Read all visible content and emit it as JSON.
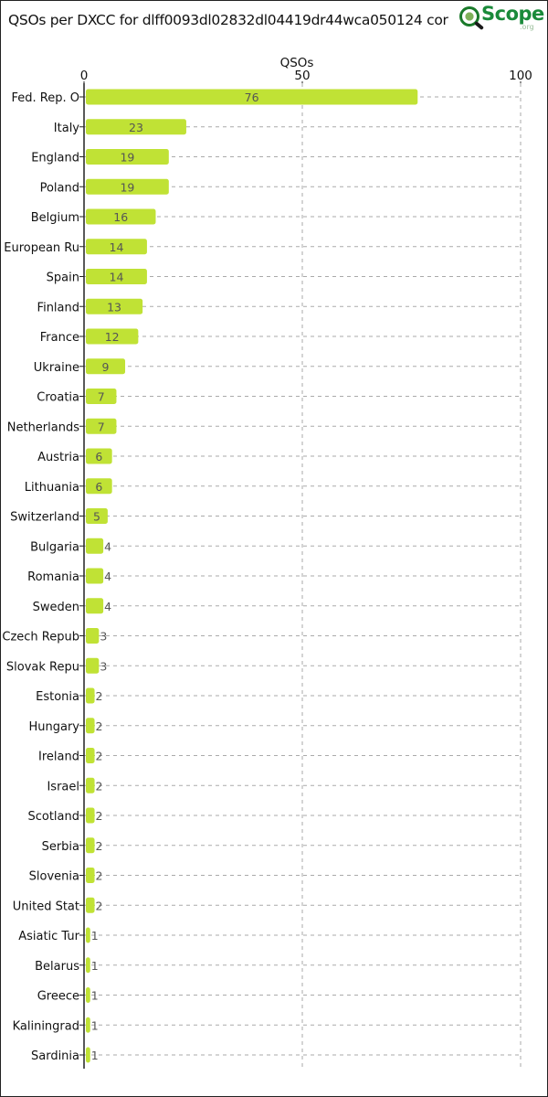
{
  "header": {
    "title": "QSOs per DXCC for dlff0093dl02832dl04419dr44wca050124 cor",
    "logo_text": "Scope",
    "logo_suffix": ".org",
    "logo_icon": "magnifier-globe-icon"
  },
  "colors": {
    "bar": "#c0e235",
    "grid": "#aaaaaa",
    "axis": "#222222",
    "logo": "#1a8a3a"
  },
  "chart_data": {
    "type": "bar",
    "orientation": "horizontal",
    "xlabel": "QSOs",
    "xlim": [
      0,
      100
    ],
    "xticks": [
      0,
      50,
      100
    ],
    "x_axis_position": "top",
    "grid": true,
    "categories": [
      "Fed. Rep. O",
      "Italy",
      "England",
      "Poland",
      "Belgium",
      "European Ru",
      "Spain",
      "Finland",
      "France",
      "Ukraine",
      "Croatia",
      "Netherlands",
      "Austria",
      "Lithuania",
      "Switzerland",
      "Bulgaria",
      "Romania",
      "Sweden",
      "Czech Repub",
      "Slovak Repu",
      "Estonia",
      "Hungary",
      "Ireland",
      "Israel",
      "Scotland",
      "Serbia",
      "Slovenia",
      "United Stat",
      "Asiatic Tur",
      "Belarus",
      "Greece",
      "Kaliningrad",
      "Sardinia"
    ],
    "values": [
      76,
      23,
      19,
      19,
      16,
      14,
      14,
      13,
      12,
      9,
      7,
      7,
      6,
      6,
      5,
      4,
      4,
      4,
      3,
      3,
      2,
      2,
      2,
      2,
      2,
      2,
      2,
      2,
      1,
      1,
      1,
      1,
      1
    ]
  }
}
